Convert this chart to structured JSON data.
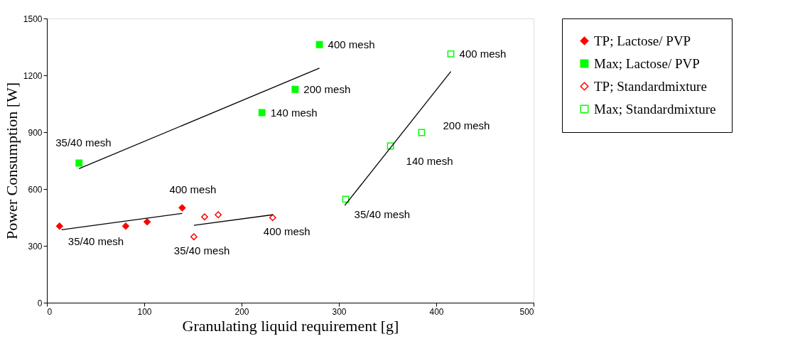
{
  "chart_data": {
    "type": "scatter",
    "xlabel": "Granulating liquid requirement [g]",
    "ylabel": "Power Consumption [W]",
    "xlim": [
      0,
      500
    ],
    "xticks": [
      0,
      100,
      200,
      300,
      400,
      500
    ],
    "ylim": [
      0,
      1500
    ],
    "yticks": [
      0,
      300,
      600,
      900,
      1200,
      1500
    ],
    "grid": false,
    "legend": "right",
    "series": [
      {
        "name": "TP; Lactose/ PVP",
        "color": "#ff0000",
        "marker": "diamond",
        "x": [
          13,
          81,
          103,
          139
        ],
        "values": [
          404,
          404,
          427,
          501
        ]
      },
      {
        "name": "Max; Lactose/ PVP",
        "color": "#00ff00",
        "marker": "square",
        "x": [
          33,
          221,
          255,
          280
        ],
        "values": [
          737,
          1003,
          1126,
          1362
        ]
      },
      {
        "name": "TP; Standardmixture",
        "color": "#ff0000",
        "marker": "diamond",
        "x": [
          151,
          162,
          176,
          232
        ],
        "values": [
          348,
          453,
          464,
          449
        ]
      },
      {
        "name": "Max; Standardmixture",
        "color": "#00ff00",
        "marker": "square",
        "x": [
          307,
          353,
          385,
          415
        ],
        "values": [
          546,
          827,
          898,
          1313
        ]
      },
      {
        "type": "line",
        "color": "#000000",
        "x": [
          15,
          139
        ],
        "values": [
          385,
          471
        ]
      },
      {
        "type": "line",
        "color": "#000000",
        "x": [
          33,
          280
        ],
        "values": [
          707,
          1238
        ]
      },
      {
        "type": "line",
        "color": "#000000",
        "x": [
          151,
          232
        ],
        "values": [
          408,
          464
        ]
      },
      {
        "type": "line",
        "color": "#000000",
        "x": [
          306,
          415
        ],
        "values": [
          513,
          1220
        ]
      }
    ],
    "annotations": [
      {
        "text": "35/40 mesh",
        "x": 13,
        "y": 404
      },
      {
        "text": "400 mesh",
        "x": 139,
        "y": 501
      },
      {
        "text": "35/40 mesh",
        "x": 33,
        "y": 737
      },
      {
        "text": "140 mesh",
        "x": 221,
        "y": 1003
      },
      {
        "text": "200 mesh",
        "x": 255,
        "y": 1126
      },
      {
        "text": "400 mesh",
        "x": 280,
        "y": 1362
      },
      {
        "text": "35/40 mesh",
        "x": 151,
        "y": 348
      },
      {
        "text": "400 mesh",
        "x": 232,
        "y": 449
      },
      {
        "text": "35/40 mesh",
        "x": 307,
        "y": 546
      },
      {
        "text": "140 mesh",
        "x": 353,
        "y": 827
      },
      {
        "text": "200 mesh",
        "x": 385,
        "y": 898
      },
      {
        "text": "400 mesh",
        "x": 415,
        "y": 1313
      }
    ]
  }
}
